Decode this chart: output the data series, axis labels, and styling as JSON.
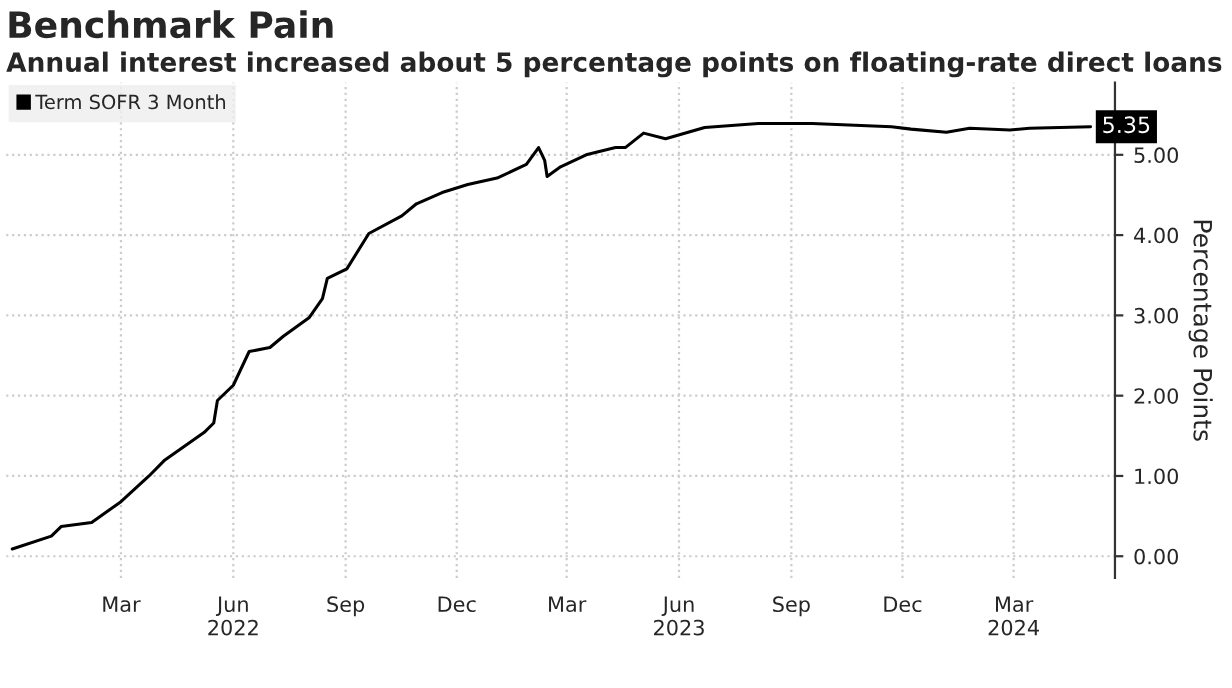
{
  "chart_data": {
    "type": "line",
    "title": "Benchmark Pain",
    "subtitle": "Annual interest increased about 5 percentage points on floating-rate direct loans",
    "ylabel": "Percentage Points",
    "x": [
      "2021-12-02",
      "2022-01-03",
      "2022-01-11",
      "2022-02-05",
      "2022-03-01",
      "2022-03-24",
      "2022-04-06",
      "2022-05-08",
      "2022-05-16",
      "2022-05-19",
      "2022-06-01",
      "2022-06-14",
      "2022-07-01",
      "2022-07-12",
      "2022-08-02",
      "2022-08-13",
      "2022-08-17",
      "2022-09-02",
      "2022-09-20",
      "2022-10-17",
      "2022-10-29",
      "2022-11-19",
      "2022-12-10",
      "2023-01-03",
      "2023-01-27",
      "2023-02-06",
      "2023-02-11",
      "2023-02-13",
      "2023-02-24",
      "2023-03-17",
      "2023-04-10",
      "2023-04-18",
      "2023-05-03",
      "2023-05-21",
      "2023-06-22",
      "2023-08-05",
      "2023-09-18",
      "2023-11-22",
      "2023-12-08",
      "2024-01-06",
      "2024-01-25",
      "2024-02-27",
      "2024-03-14",
      "2024-05-03"
    ],
    "series": [
      {
        "name": "Term SOFR 3 Month",
        "color": "#000000",
        "values": [
          0.09,
          0.25,
          0.37,
          0.42,
          0.68,
          1.0,
          1.2,
          1.54,
          1.66,
          1.94,
          2.13,
          2.55,
          2.6,
          2.74,
          2.97,
          3.21,
          3.46,
          3.58,
          4.02,
          4.24,
          4.39,
          4.53,
          4.63,
          4.71,
          4.88,
          5.09,
          4.93,
          4.73,
          4.85,
          5.0,
          5.09,
          5.09,
          5.27,
          5.2,
          5.34,
          5.39,
          5.39,
          5.35,
          5.32,
          5.28,
          5.33,
          5.31,
          5.33,
          5.35
        ],
        "value_labels": [
          null,
          null,
          null,
          null,
          null,
          null,
          null,
          null,
          null,
          null,
          null,
          null,
          null,
          null,
          null,
          null,
          null,
          null,
          null,
          null,
          null,
          null,
          null,
          null,
          null,
          null,
          null,
          null,
          null,
          null,
          null,
          null,
          null,
          null,
          null,
          null,
          null,
          null,
          null,
          null,
          null,
          null,
          null,
          "5.35"
        ]
      }
    ],
    "xlim": [
      "2021-11-27",
      "2024-05-23"
    ],
    "xticks": [
      {
        "value": "2022-03-01",
        "label": "Mar"
      },
      {
        "value": "2022-06-01",
        "label": "Jun\n2022"
      },
      {
        "value": "2022-09-01",
        "label": "Sep"
      },
      {
        "value": "2022-12-01",
        "label": "Dec"
      },
      {
        "value": "2023-03-01",
        "label": "Mar"
      },
      {
        "value": "2023-06-01",
        "label": "Jun\n2023"
      },
      {
        "value": "2023-09-01",
        "label": "Sep"
      },
      {
        "value": "2023-12-01",
        "label": "Dec"
      },
      {
        "value": "2024-03-01",
        "label": "Mar\n2024"
      }
    ],
    "ylim": [
      -0.27,
      5.9
    ],
    "yticks": [
      {
        "value": 0,
        "label": "0.00"
      },
      {
        "value": 1,
        "label": "1.00"
      },
      {
        "value": 2,
        "label": "2.00"
      },
      {
        "value": 3,
        "label": "3.00"
      },
      {
        "value": 4,
        "label": "4.00"
      },
      {
        "value": 5,
        "label": "5.00"
      }
    ],
    "grid": true,
    "legend": "top left",
    "marker": "none",
    "line_style": "solid"
  }
}
